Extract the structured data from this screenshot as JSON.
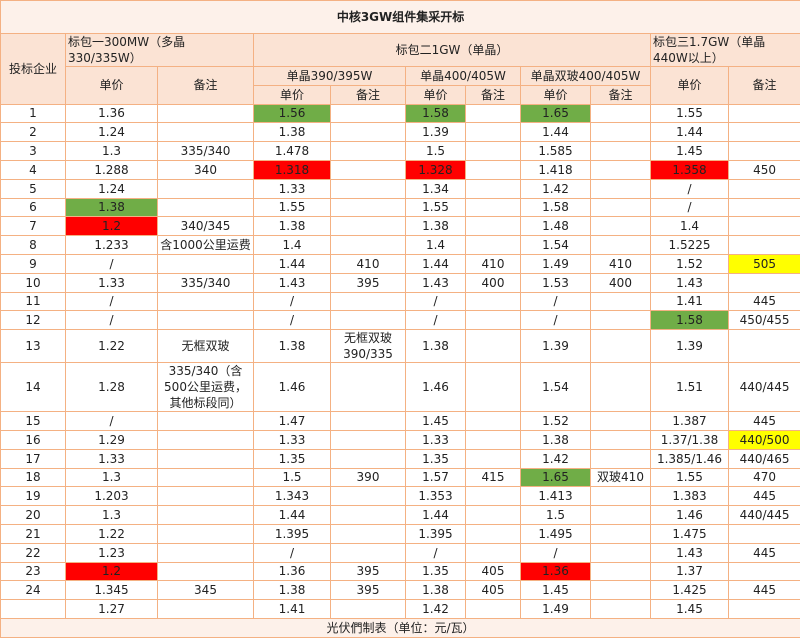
{
  "title": "中核3GW组件集采开标",
  "header": {
    "company": "投标企业",
    "lot1": "标包一300MW（多晶330/335W）",
    "lot2": "标包二1GW（单晶）",
    "lot3": "标包三1.7GW（单晶440W以上）",
    "lot2_groups": [
      "单晶390/395W",
      "单晶400/405W",
      "单晶双玻400/405W"
    ],
    "price": "单价",
    "note": "备注"
  },
  "rows": [
    [
      "1",
      "1.36",
      null,
      {
        "text": "1.56",
        "fill": "#70ad47"
      },
      null,
      {
        "text": "1.58",
        "fill": "#70ad47"
      },
      null,
      {
        "text": "1.65",
        "fill": "#70ad47"
      },
      null,
      "1.55",
      null
    ],
    [
      "2",
      "1.24",
      null,
      "1.38",
      null,
      "1.39",
      null,
      "1.44",
      null,
      "1.44",
      null
    ],
    [
      "3",
      "1.3",
      "335/340",
      "1.478",
      null,
      "1.5",
      null,
      "1.585",
      null,
      "1.45",
      null
    ],
    [
      "4",
      "1.288",
      "340",
      {
        "text": "1.318",
        "fill": "#ff0000"
      },
      null,
      {
        "text": "1.328",
        "fill": "#ff0000"
      },
      null,
      "1.418",
      null,
      {
        "text": "1.358",
        "fill": "#ff0000"
      },
      "450"
    ],
    [
      "5",
      "1.24",
      null,
      "1.33",
      null,
      "1.34",
      null,
      "1.42",
      null,
      "/",
      null
    ],
    [
      "6",
      {
        "text": "1.38",
        "fill": "#70ad47"
      },
      null,
      "1.55",
      null,
      "1.55",
      null,
      "1.58",
      null,
      "/",
      null
    ],
    [
      "7",
      {
        "text": "1.2",
        "fill": "#ff0000"
      },
      "340/345",
      "1.38",
      null,
      "1.38",
      null,
      "1.48",
      null,
      "1.4",
      null
    ],
    [
      "8",
      "1.233",
      "含1000公里运费",
      "1.4",
      null,
      "1.4",
      null,
      "1.54",
      null,
      "1.5225",
      null
    ],
    [
      "9",
      "/",
      null,
      "1.44",
      "410",
      "1.44",
      "410",
      "1.49",
      "410",
      "1.52",
      {
        "text": "505",
        "fill": "#ffff00"
      }
    ],
    [
      "10",
      "1.33",
      "335/340",
      "1.43",
      "395",
      "1.43",
      "400",
      "1.53",
      "400",
      "1.43",
      null
    ],
    [
      "11",
      "/",
      null,
      "/",
      null,
      "/",
      null,
      "/",
      null,
      "1.41",
      "445"
    ],
    [
      "12",
      "/",
      null,
      "/",
      null,
      "/",
      null,
      "/",
      null,
      {
        "text": "1.58",
        "fill": "#70ad47"
      },
      "450/455"
    ],
    [
      "13",
      "1.22",
      "无框双玻",
      "1.38",
      "无框双玻390/335",
      "1.38",
      null,
      "1.39",
      null,
      "1.39",
      null
    ],
    [
      "14",
      "1.28",
      "335/340（含500公里运费，其他标段同）",
      "1.46",
      null,
      "1.46",
      null,
      "1.54",
      null,
      "1.51",
      "440/445"
    ],
    [
      "15",
      "/",
      null,
      "1.47",
      null,
      "1.45",
      null,
      "1.52",
      null,
      "1.387",
      "445"
    ],
    [
      "16",
      "1.29",
      null,
      "1.33",
      null,
      "1.33",
      null,
      "1.38",
      null,
      "1.37/1.38",
      {
        "text": "440/500",
        "fill": "#ffff00"
      }
    ],
    [
      "17",
      "1.33",
      null,
      "1.35",
      null,
      "1.35",
      null,
      "1.42",
      null,
      "1.385/1.46",
      "440/465"
    ],
    [
      "18",
      "1.3",
      null,
      "1.5",
      "390",
      "1.57",
      "415",
      {
        "text": "1.65",
        "fill": "#70ad47"
      },
      "双玻410",
      "1.55",
      "470"
    ],
    [
      "19",
      "1.203",
      null,
      "1.343",
      null,
      "1.353",
      null,
      "1.413",
      null,
      "1.383",
      "445"
    ],
    [
      "20",
      "1.3",
      null,
      "1.44",
      null,
      "1.44",
      null,
      "1.5",
      null,
      "1.46",
      "440/445"
    ],
    [
      "21",
      "1.22",
      null,
      "1.395",
      null,
      "1.395",
      null,
      "1.495",
      null,
      "1.475",
      null
    ],
    [
      "22",
      "1.23",
      null,
      "/",
      null,
      "/",
      null,
      "/",
      null,
      "1.43",
      "445"
    ],
    [
      "23",
      {
        "text": "1.2",
        "fill": "#ff0000"
      },
      null,
      "1.36",
      "395",
      "1.35",
      "405",
      {
        "text": "1.36",
        "fill": "#ff0000"
      },
      null,
      "1.37",
      null
    ],
    [
      "24",
      "1.345",
      "345",
      "1.38",
      "395",
      "1.38",
      "405",
      "1.45",
      null,
      "1.425",
      "445"
    ],
    [
      null,
      "1.27",
      null,
      "1.41",
      null,
      "1.42",
      null,
      "1.49",
      null,
      "1.45",
      null
    ]
  ],
  "footer": "光伏們制表（单位：元/瓦）"
}
